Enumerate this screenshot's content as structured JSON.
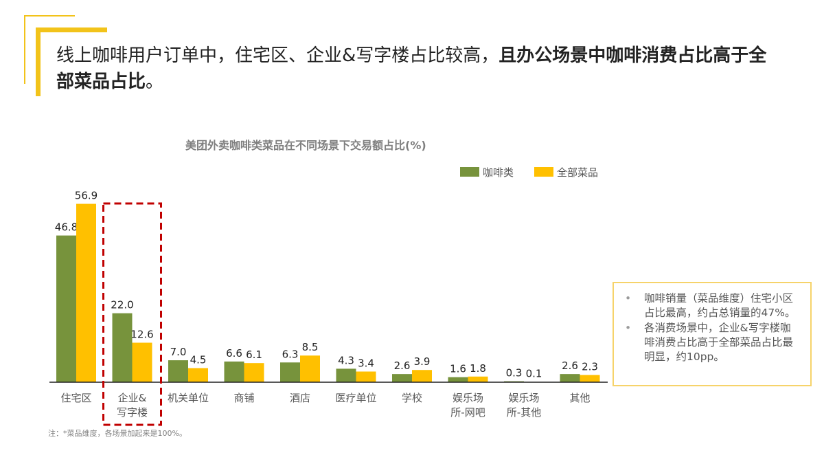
{
  "headline": {
    "normal": "线上咖啡用户订单中，住宅区、企业&写字楼占比较高，",
    "bold": "且办公场景中咖啡消费占比高于全部菜品占比",
    "tail": "。"
  },
  "note": "注：*菜品维度，各场景加起来是100%。",
  "callout": {
    "bullets": [
      "咖啡销量（菜品维度）住宅小区占比最高，约占总销量的47%。",
      "各消费场景中，企业&写字楼咖啡消费占比高于全部菜品占比最明显，约10pp。"
    ]
  },
  "colors": {
    "coffee": "#77933c",
    "all": "#ffc000",
    "highlight": "#c00000",
    "accent": "#f2c31a"
  },
  "chart_data": {
    "type": "bar",
    "title": "美团外卖咖啡类菜品在不同场景下交易额占比(%)",
    "categories": [
      [
        "住宅区"
      ],
      [
        "企业&",
        "写字楼"
      ],
      [
        "机关单位"
      ],
      [
        "商铺"
      ],
      [
        "酒店"
      ],
      [
        "医疗单位"
      ],
      [
        "学校"
      ],
      [
        "娱乐场",
        "所-网吧"
      ],
      [
        "娱乐场",
        "所-其他"
      ],
      [
        "其他"
      ]
    ],
    "series": [
      {
        "name": "咖啡类",
        "values": [
          46.8,
          22.0,
          7.0,
          6.6,
          6.3,
          4.3,
          2.6,
          1.6,
          0.3,
          2.6
        ]
      },
      {
        "name": "全部菜品",
        "values": [
          56.9,
          12.6,
          4.5,
          6.1,
          8.5,
          3.4,
          3.9,
          1.8,
          0.1,
          2.3
        ]
      }
    ],
    "ylim": [
      0,
      60
    ],
    "legend": "top-right",
    "highlighted_category": "企业&写字楼"
  }
}
